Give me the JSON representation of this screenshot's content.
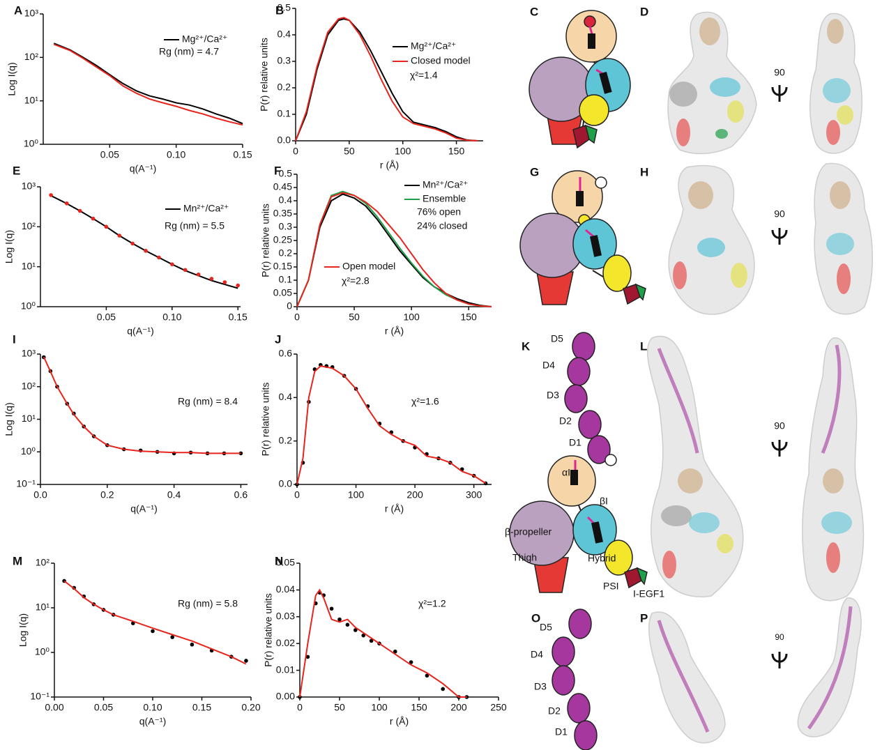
{
  "chart_data": [
    {
      "type": "line",
      "panel": "A",
      "xlabel": "q(A⁻¹)",
      "ylabel": "Log I(q)",
      "log": true,
      "xlim": [
        0,
        0.15
      ],
      "xticks": [
        0.05,
        {
          "value": 0.1,
          "label": "0.10"
        },
        0.15
      ],
      "ylim": [
        1,
        1000
      ],
      "yticks": [
        {
          "value": 1,
          "label": "10⁰"
        },
        {
          "value": 10,
          "label": "10¹"
        },
        {
          "value": 100,
          "label": "10²"
        },
        {
          "value": 1000,
          "label": "10³"
        }
      ],
      "x": [
        0.008,
        0.02,
        0.03,
        0.04,
        0.05,
        0.06,
        0.07,
        0.08,
        0.09,
        0.1,
        0.11,
        0.12,
        0.13,
        0.14,
        0.15
      ],
      "series": [
        {
          "name": "Mg²⁺/Ca²⁺",
          "color": "#000000",
          "values": [
            210,
            150,
            100,
            65,
            40,
            25,
            17,
            13,
            11,
            9,
            8,
            6.5,
            5,
            4,
            3
          ]
        },
        {
          "color": "#e8241c",
          "values": [
            200,
            145,
            95,
            60,
            38,
            22,
            15,
            11,
            9,
            7.5,
            6,
            5,
            4,
            3.3,
            2.8
          ]
        }
      ],
      "annotations": [
        "Rg (nm) = 4.7"
      ]
    },
    {
      "type": "line",
      "panel": "B",
      "xlabel": "r (Å)",
      "ylabel": "P(r) relative units",
      "xlim": [
        0,
        175
      ],
      "xticks": [
        0,
        50,
        100,
        150
      ],
      "ylim": [
        0,
        0.5
      ],
      "yticks": [
        {
          "value": 0,
          "label": "0.0"
        },
        0.1,
        0.2,
        0.3,
        0.4,
        0.5
      ],
      "x": [
        0,
        10,
        20,
        30,
        40,
        45,
        50,
        60,
        70,
        80,
        90,
        100,
        110,
        120,
        130,
        140,
        150,
        160,
        170
      ],
      "series": [
        {
          "name": "Mg²⁺/Ca²⁺",
          "color": "#000000",
          "values": [
            0,
            0.1,
            0.27,
            0.4,
            0.455,
            0.46,
            0.455,
            0.41,
            0.34,
            0.26,
            0.18,
            0.11,
            0.07,
            0.06,
            0.05,
            0.035,
            0.015,
            0.003,
            0
          ]
        },
        {
          "name": "Closed model",
          "color": "#e8241c",
          "values": [
            0,
            0.11,
            0.28,
            0.41,
            0.46,
            0.465,
            0.455,
            0.4,
            0.32,
            0.23,
            0.15,
            0.09,
            0.065,
            0.055,
            0.045,
            0.03,
            0.01,
            0.002,
            0
          ]
        }
      ],
      "annotations": [
        "χ²=1.4"
      ]
    },
    {
      "type": "line",
      "panel": "E",
      "xlabel": "q(A⁻¹)",
      "ylabel": "Log I(q)",
      "log": true,
      "xlim": [
        0,
        0.152
      ],
      "xticks": [
        0.05,
        {
          "value": 0.1,
          "label": "0.10"
        },
        0.15
      ],
      "ylim": [
        1,
        1000
      ],
      "yticks": [
        {
          "value": 1,
          "label": "10⁰"
        },
        {
          "value": 10,
          "label": "10¹"
        },
        {
          "value": 100,
          "label": "10²"
        },
        {
          "value": 1000,
          "label": "10³"
        }
      ],
      "x": [
        0.008,
        0.02,
        0.03,
        0.04,
        0.05,
        0.06,
        0.07,
        0.08,
        0.09,
        0.1,
        0.11,
        0.12,
        0.13,
        0.14,
        0.15
      ],
      "series": [
        {
          "name": "Mn²⁺/Ca²⁺",
          "color": "#000000",
          "values": [
            600,
            380,
            250,
            160,
            100,
            60,
            38,
            25,
            17,
            11.5,
            8,
            6,
            4.5,
            3.6,
            2.9
          ]
        },
        {
          "color": "#e8241c",
          "marker": true,
          "values": [
            620,
            385,
            250,
            160,
            100,
            60,
            38,
            25,
            17,
            11.5,
            8.3,
            6.4,
            5,
            4.1,
            3.4
          ]
        }
      ],
      "annotations": [
        "Rg (nm) = 5.5"
      ]
    },
    {
      "type": "line",
      "panel": "F",
      "xlabel": "r (Å)",
      "ylabel": "P(r) relative units",
      "xlim": [
        0,
        170
      ],
      "xticks": [
        0,
        50,
        100,
        150
      ],
      "ylim": [
        0,
        0.5
      ],
      "yticks": [
        0,
        0.05,
        0.1,
        0.15,
        0.2,
        0.25,
        0.3,
        0.35,
        0.4,
        0.45,
        0.5
      ],
      "x": [
        0,
        10,
        20,
        30,
        40,
        50,
        60,
        70,
        80,
        90,
        100,
        110,
        120,
        130,
        140,
        150,
        160,
        170
      ],
      "series": [
        {
          "name": "Mn²⁺/Ca²⁺",
          "color": "#000000",
          "values": [
            0,
            0.1,
            0.3,
            0.4,
            0.425,
            0.41,
            0.38,
            0.33,
            0.27,
            0.21,
            0.16,
            0.11,
            0.075,
            0.05,
            0.03,
            0.015,
            0.005,
            0
          ]
        },
        {
          "name": "Ensemble",
          "color": "#1fa04a",
          "values": [
            0,
            0.1,
            0.31,
            0.42,
            0.435,
            0.42,
            0.39,
            0.34,
            0.28,
            0.22,
            0.165,
            0.115,
            0.075,
            0.045,
            0.025,
            0.01,
            0.003,
            0
          ]
        },
        {
          "name": "Open model",
          "color": "#e8241c",
          "values": [
            0,
            0.1,
            0.31,
            0.415,
            0.43,
            0.42,
            0.395,
            0.36,
            0.31,
            0.26,
            0.2,
            0.14,
            0.09,
            0.05,
            0.025,
            0.01,
            0.003,
            0
          ]
        }
      ],
      "annotations": [
        "76% open",
        "24% closed",
        "χ²=2.8"
      ]
    },
    {
      "type": "line",
      "panel": "I",
      "xlabel": "q(A⁻¹)",
      "ylabel": "Log I(q)",
      "log": true,
      "xlim": [
        0,
        0.62
      ],
      "xticks": [
        {
          "value": 0,
          "label": "0.0"
        },
        0.2,
        0.4,
        0.6
      ],
      "ylim": [
        0.1,
        1000
      ],
      "yticks": [
        {
          "value": 0.1,
          "label": "10⁻¹"
        },
        {
          "value": 1,
          "label": "10⁰"
        },
        {
          "value": 10,
          "label": "10¹"
        },
        {
          "value": 100,
          "label": "10²"
        },
        {
          "value": 1000,
          "label": "10³"
        }
      ],
      "x": [
        0.01,
        0.03,
        0.05,
        0.08,
        0.1,
        0.13,
        0.16,
        0.2,
        0.25,
        0.3,
        0.35,
        0.4,
        0.45,
        0.5,
        0.55,
        0.6
      ],
      "series": [
        {
          "color": "#000000",
          "marker": true,
          "values": [
            800,
            300,
            100,
            30,
            15,
            6,
            3,
            1.6,
            1.2,
            1.1,
            1.0,
            0.9,
            0.95,
            0.9,
            0.9,
            0.9
          ]
        },
        {
          "color": "#e8241c",
          "values": [
            820,
            290,
            100,
            30,
            14,
            6,
            3,
            1.6,
            1.2,
            1.05,
            1.0,
            0.95,
            0.95,
            0.9,
            0.9,
            0.9
          ]
        }
      ],
      "annotations": [
        "Rg (nm) = 8.4"
      ]
    },
    {
      "type": "line",
      "panel": "J",
      "xlabel": "r (Å)",
      "ylabel": "P(r) relative units",
      "xlim": [
        0,
        330
      ],
      "xticks": [
        0,
        100,
        200,
        300
      ],
      "ylim": [
        0,
        0.6
      ],
      "yticks": [
        {
          "value": 0,
          "label": "0.0"
        },
        0.2,
        0.4,
        0.6
      ],
      "x": [
        0,
        10,
        20,
        30,
        40,
        50,
        60,
        80,
        100,
        120,
        140,
        160,
        180,
        200,
        220,
        240,
        260,
        280,
        300,
        320
      ],
      "series": [
        {
          "color": "#000000",
          "marker": true,
          "values": [
            0,
            0.1,
            0.38,
            0.53,
            0.55,
            0.545,
            0.54,
            0.5,
            0.44,
            0.36,
            0.28,
            0.24,
            0.2,
            0.17,
            0.14,
            0.12,
            0.1,
            0.07,
            0.04,
            0.005
          ]
        },
        {
          "color": "#e8241c",
          "values": [
            0,
            0.12,
            0.4,
            0.52,
            0.545,
            0.54,
            0.535,
            0.5,
            0.44,
            0.35,
            0.27,
            0.23,
            0.2,
            0.18,
            0.13,
            0.12,
            0.1,
            0.06,
            0.04,
            0.005
          ]
        }
      ],
      "annotations": [
        "χ²=1.6"
      ]
    },
    {
      "type": "line",
      "panel": "M",
      "xlabel": "q(A⁻¹)",
      "ylabel": "Log I(q)",
      "log": true,
      "xlim": [
        0,
        0.2
      ],
      "xticks": [
        {
          "value": 0,
          "label": "0.00"
        },
        0.05,
        {
          "value": 0.1,
          "label": "0.10"
        },
        0.15,
        {
          "value": 0.2,
          "label": "0.20"
        }
      ],
      "ylim": [
        0.1,
        100
      ],
      "yticks": [
        {
          "value": 0.1,
          "label": "10⁻¹"
        },
        {
          "value": 1,
          "label": "10⁰"
        },
        {
          "value": 10,
          "label": "10¹"
        },
        {
          "value": 100,
          "label": "10²"
        }
      ],
      "x": [
        0.01,
        0.02,
        0.03,
        0.04,
        0.05,
        0.06,
        0.08,
        0.1,
        0.12,
        0.14,
        0.16,
        0.18,
        0.195
      ],
      "series": [
        {
          "color": "#000000",
          "marker": true,
          "values": [
            40,
            28,
            18,
            12,
            9,
            7,
            4.5,
            3,
            2.2,
            1.5,
            1.1,
            0.8,
            0.65
          ]
        },
        {
          "color": "#e8241c",
          "values": [
            40,
            27,
            17,
            12,
            9,
            7,
            5,
            3.5,
            2.5,
            1.8,
            1.2,
            0.8,
            0.55
          ]
        }
      ],
      "annotations": [
        "Rg (nm) = 5.8"
      ]
    },
    {
      "type": "line",
      "panel": "N",
      "xlabel": "r (Å)",
      "ylabel": "P(r) relative units",
      "xlim": [
        0,
        250
      ],
      "xticks": [
        0,
        50,
        100,
        150,
        200,
        250
      ],
      "ylim": [
        0,
        0.05
      ],
      "yticks": [
        {
          "value": 0,
          "label": "0.00"
        },
        0.01,
        0.02,
        0.03,
        0.04,
        0.05
      ],
      "x": [
        0,
        10,
        20,
        25,
        30,
        40,
        50,
        60,
        70,
        80,
        90,
        100,
        120,
        140,
        160,
        180,
        200,
        210
      ],
      "series": [
        {
          "color": "#000000",
          "marker": true,
          "values": [
            0,
            0.015,
            0.035,
            0.039,
            0.038,
            0.033,
            0.029,
            0.027,
            0.025,
            0.023,
            0.021,
            0.02,
            0.017,
            0.013,
            0.008,
            0.003,
            0,
            0
          ]
        },
        {
          "color": "#e8241c",
          "values": [
            0,
            0.02,
            0.038,
            0.04,
            0.037,
            0.029,
            0.028,
            0.029,
            0.026,
            0.024,
            0.022,
            0.02,
            0.016,
            0.012,
            0.009,
            0.005,
            0,
            0
          ]
        }
      ],
      "annotations": [
        "χ²=1.2"
      ]
    }
  ],
  "figures": [
    {
      "panel": "C"
    },
    {
      "panel": "D",
      "rotation": 90
    },
    {
      "panel": "G"
    },
    {
      "panel": "H",
      "rotation": 90
    },
    {
      "panel": "K",
      "labels": [
        "D5",
        "D4",
        "D3",
        "D2",
        "D1",
        "αI",
        "βI",
        "β-propeller",
        "Thigh",
        "Hybrid",
        "PSI",
        "I-EGF1"
      ]
    },
    {
      "panel": "L",
      "rotation": 90
    },
    {
      "panel": "O",
      "labels": [
        "D5",
        "D4",
        "D3",
        "D2",
        "D1"
      ]
    },
    {
      "panel": "P",
      "rotation": 90
    }
  ]
}
